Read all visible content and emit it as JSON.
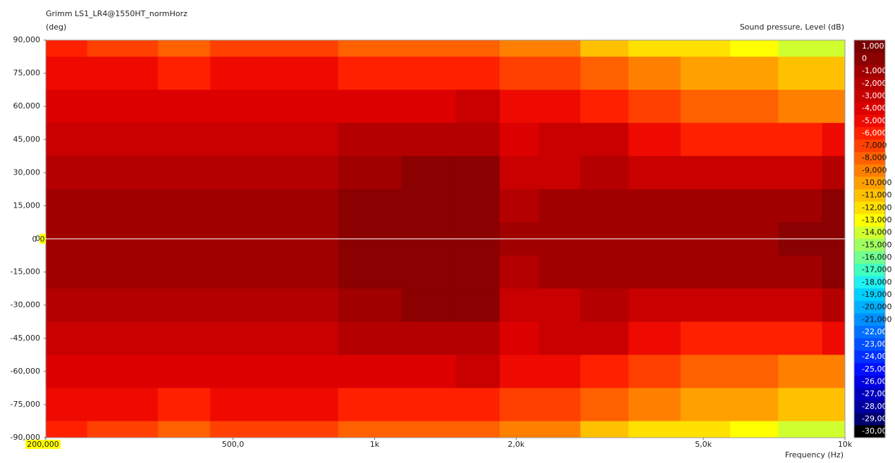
{
  "chart_data": {
    "type": "contour",
    "title": "Grimm LS1_LR4@1550HT_normHorz",
    "y_label": "(deg)",
    "x_label": "Frequency  (Hz)",
    "log_x": true,
    "x": [
      200,
      300,
      400,
      500,
      700,
      1000,
      1300,
      1700,
      2000,
      2500,
      3000,
      4000,
      5000,
      6500,
      8000,
      10000
    ],
    "y": [
      90,
      75,
      60,
      45,
      30,
      15,
      0,
      -15,
      -30,
      -45,
      -60,
      -75,
      -90
    ],
    "z": [
      [
        -6,
        -7,
        -8,
        -7,
        -7,
        -8,
        -8,
        -8,
        -9,
        -9,
        -11,
        -12,
        -12,
        -13,
        -14,
        -14
      ],
      [
        -5,
        -5,
        -6,
        -5,
        -5,
        -6,
        -6,
        -6,
        -7,
        -7,
        -8,
        -9,
        -10,
        -10,
        -11,
        -11
      ],
      [
        -4,
        -4,
        -4,
        -4,
        -4,
        -4,
        -4,
        -3,
        -5,
        -5,
        -6,
        -7,
        -8,
        -8,
        -9,
        -9
      ],
      [
        -3,
        -3,
        -3,
        -3,
        -3,
        -2,
        -2,
        -2,
        -4,
        -3,
        -3,
        -5,
        -6,
        -6,
        -6,
        -5
      ],
      [
        -2,
        -2,
        -2,
        -2,
        -2,
        -1,
        0,
        0,
        -3,
        -3,
        -2,
        -3,
        -3,
        -3,
        -3,
        -2
      ],
      [
        -1,
        -1,
        -1,
        -1,
        -1,
        0,
        0,
        0,
        -2,
        -1,
        -1,
        -1,
        -1,
        -1,
        -1,
        0
      ],
      [
        -1,
        -1,
        -1,
        -1,
        -1,
        0,
        0,
        0,
        -1,
        -1,
        -1,
        -1,
        -1,
        -1,
        0,
        0
      ],
      [
        -1,
        -1,
        -1,
        -1,
        -1,
        0,
        0,
        0,
        -2,
        -1,
        -1,
        -1,
        -1,
        -1,
        -1,
        0
      ],
      [
        -2,
        -2,
        -2,
        -2,
        -2,
        -1,
        0,
        0,
        -3,
        -3,
        -2,
        -3,
        -3,
        -3,
        -3,
        -2
      ],
      [
        -3,
        -3,
        -3,
        -3,
        -3,
        -2,
        -2,
        -2,
        -4,
        -3,
        -3,
        -5,
        -6,
        -6,
        -6,
        -5
      ],
      [
        -4,
        -4,
        -4,
        -4,
        -4,
        -4,
        -4,
        -3,
        -5,
        -5,
        -6,
        -7,
        -8,
        -8,
        -9,
        -9
      ],
      [
        -5,
        -5,
        -6,
        -5,
        -5,
        -6,
        -6,
        -6,
        -7,
        -7,
        -8,
        -9,
        -10,
        -10,
        -11,
        -11
      ],
      [
        -6,
        -7,
        -8,
        -7,
        -7,
        -8,
        -8,
        -8,
        -9,
        -9,
        -11,
        -12,
        -12,
        -13,
        -14,
        -14
      ]
    ],
    "xlim": [
      200,
      10000
    ],
    "ylim": [
      -90,
      90
    ],
    "xticks": [
      {
        "value": 200,
        "label": "200,0"
      },
      {
        "value": 500,
        "label": "500,0"
      },
      {
        "value": 1000,
        "label": "1k"
      },
      {
        "value": 2000,
        "label": "2,0k"
      },
      {
        "value": 5000,
        "label": "5,0k"
      },
      {
        "value": 10000,
        "label": "10k"
      }
    ],
    "yticks": [
      {
        "value": 90,
        "label": "90,000"
      },
      {
        "value": 75,
        "label": "75,000"
      },
      {
        "value": 60,
        "label": "60,000"
      },
      {
        "value": 45,
        "label": "45,000"
      },
      {
        "value": 30,
        "label": "30,000"
      },
      {
        "value": 15,
        "label": "15,000"
      },
      0,
      {
        "value": -15,
        "label": "-15,000"
      },
      {
        "value": -30,
        "label": "-30,000"
      },
      {
        "value": -45,
        "label": "-45,000"
      },
      {
        "value": -60,
        "label": "-60,000"
      },
      {
        "value": -75,
        "label": "-75,000"
      },
      {
        "value": -90,
        "label": "-90,000"
      }
    ],
    "cursor": {
      "y": 0,
      "y_label": "0",
      "x_label": "200,000"
    },
    "colorbar": {
      "title": "Sound pressure, Level  (dB)",
      "ticks": [
        {
          "value": 1,
          "label": "1,000"
        },
        0,
        {
          "value": -1,
          "label": "-1,000"
        },
        {
          "value": -2,
          "label": "-2,000"
        },
        {
          "value": -3,
          "label": "-3,000"
        },
        {
          "value": -4,
          "label": "-4,000"
        },
        {
          "value": -5,
          "label": "-5,000"
        },
        {
          "value": -6,
          "label": "-6,000"
        },
        {
          "value": -7,
          "label": "-7,000"
        },
        {
          "value": -8,
          "label": "-8,000"
        },
        {
          "value": -9,
          "label": "-9,000"
        },
        {
          "value": -10,
          "label": "-10,000"
        },
        {
          "value": -11,
          "label": "-11,000"
        },
        {
          "value": -12,
          "label": "-12,000"
        },
        {
          "value": -13,
          "label": "-13,000"
        },
        {
          "value": -14,
          "label": "-14,000"
        },
        {
          "value": -15,
          "label": "-15,000"
        },
        {
          "value": -16,
          "label": "-16,000"
        },
        {
          "value": -17,
          "label": "-17,000"
        },
        {
          "value": -18,
          "label": "-18,000"
        },
        {
          "value": -19,
          "label": "-19,000"
        },
        {
          "value": -20,
          "label": "-20,000"
        },
        {
          "value": -21,
          "label": "-21,000"
        },
        {
          "value": -22,
          "label": "-22,000"
        },
        {
          "value": -23,
          "label": "-23,000"
        },
        {
          "value": -24,
          "label": "-24,000"
        },
        {
          "value": -25,
          "label": "-25,000"
        },
        {
          "value": -26,
          "label": "-26,000"
        },
        {
          "value": -27,
          "label": "-27,000"
        },
        {
          "value": -28,
          "label": "-28,000"
        },
        {
          "value": -29,
          "label": "-29,000"
        },
        {
          "value": -30,
          "label": "-30,000"
        }
      ],
      "colors": [
        "#7a0000",
        "#8b0000",
        "#a00000",
        "#b40000",
        "#c80000",
        "#dc0000",
        "#ee0a00",
        "#ff2000",
        "#ff4000",
        "#ff6000",
        "#ff8000",
        "#ffa000",
        "#ffc000",
        "#ffe000",
        "#ffff00",
        "#d0ff30",
        "#a0ff60",
        "#70ff90",
        "#40ffc0",
        "#20f0f0",
        "#00d0ff",
        "#00b0ff",
        "#0090ff",
        "#0070ff",
        "#0050ff",
        "#0030ff",
        "#0010ff",
        "#0000e0",
        "#0000c0",
        "#0000a0",
        "#000070",
        "#000000"
      ]
    }
  }
}
